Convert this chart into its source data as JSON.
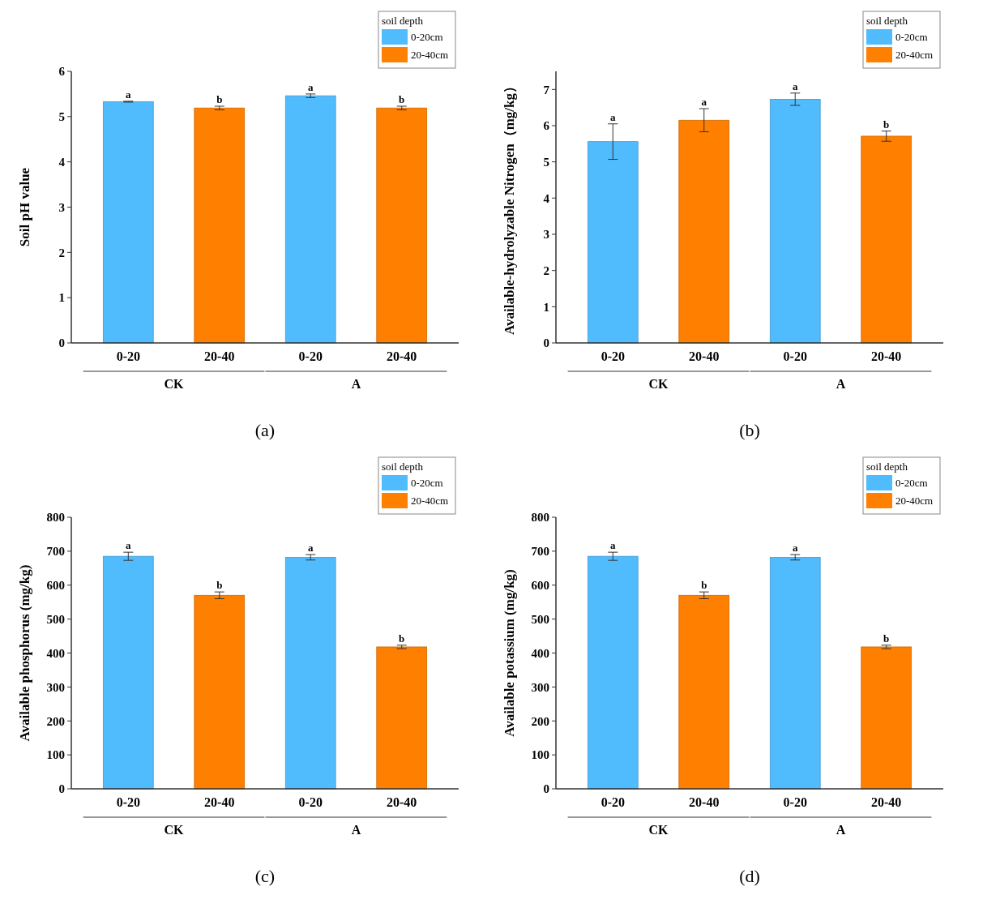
{
  "chart_data": [
    {
      "type": "bar",
      "title": "(a)",
      "ylabel": "Soil pH value",
      "legend_title": "soil depth",
      "legend": "top right",
      "categories": [
        "0-20",
        "20-40",
        "0-20",
        "20-40"
      ],
      "annotations": [
        "CK",
        "A"
      ],
      "ylim": [
        0,
        6
      ],
      "yticks": [
        0,
        1,
        2,
        3,
        4,
        5,
        6
      ],
      "series": [
        {
          "name": "0-20cm",
          "color": "#50bcfd",
          "values": [
            5.33,
            null,
            5.46,
            null
          ],
          "errors": [
            0.01,
            null,
            0.04,
            null
          ],
          "value_labels": [
            "a",
            null,
            "a",
            null
          ]
        },
        {
          "name": "20-40cm",
          "color": "#ff7f00",
          "values": [
            null,
            5.19,
            null,
            5.19
          ],
          "errors": [
            null,
            0.04,
            null,
            0.04
          ],
          "value_labels": [
            null,
            "b",
            null,
            "b"
          ]
        }
      ]
    },
    {
      "type": "bar",
      "title": "(b)",
      "ylabel": "Available-hydrolyzable Nitrogen（mg/kg）",
      "legend_title": "soil depth",
      "legend": "top right",
      "categories": [
        "0-20",
        "20-40",
        "0-20",
        "20-40"
      ],
      "annotations": [
        "CK",
        "A"
      ],
      "ylim": [
        0,
        7.5
      ],
      "yticks": [
        0,
        1,
        2,
        3,
        4,
        5,
        6,
        7
      ],
      "series": [
        {
          "name": "0-20cm",
          "color": "#50bcfd",
          "values": [
            5.56,
            null,
            6.73,
            null
          ],
          "errors": [
            0.49,
            null,
            0.17,
            null
          ],
          "value_labels": [
            "a",
            null,
            "a",
            null
          ]
        },
        {
          "name": "20-40cm",
          "color": "#ff7f00",
          "values": [
            null,
            6.15,
            null,
            5.71
          ],
          "errors": [
            null,
            0.32,
            null,
            0.14
          ],
          "value_labels": [
            null,
            "a",
            null,
            "b"
          ]
        }
      ]
    },
    {
      "type": "bar",
      "title": "(c)",
      "ylabel": "Available phosphorus (mg/kg)",
      "legend_title": "soil depth",
      "legend": "top right",
      "categories": [
        "0-20",
        "20-40",
        "0-20",
        "20-40"
      ],
      "annotations": [
        "CK",
        "A"
      ],
      "ylim": [
        0,
        800
      ],
      "yticks": [
        0,
        100,
        200,
        300,
        400,
        500,
        600,
        700,
        800
      ],
      "series": [
        {
          "name": "0-20cm",
          "color": "#50bcfd",
          "values": [
            685,
            null,
            682,
            null
          ],
          "errors": [
            12,
            null,
            8,
            null
          ],
          "value_labels": [
            "a",
            null,
            "a",
            null
          ]
        },
        {
          "name": "20-40cm",
          "color": "#ff7f00",
          "values": [
            null,
            570,
            null,
            418
          ],
          "errors": [
            null,
            10,
            null,
            5
          ],
          "value_labels": [
            null,
            "b",
            null,
            "b"
          ]
        }
      ]
    },
    {
      "type": "bar",
      "title": "(d)",
      "ylabel": "Available potassium (mg/kg)",
      "legend_title": "soil depth",
      "legend": "top right",
      "categories": [
        "0-20",
        "20-40",
        "0-20",
        "20-40"
      ],
      "annotations": [
        "CK",
        "A"
      ],
      "ylim": [
        0,
        800
      ],
      "yticks": [
        0,
        100,
        200,
        300,
        400,
        500,
        600,
        700,
        800
      ],
      "series": [
        {
          "name": "0-20cm",
          "color": "#50bcfd",
          "values": [
            685,
            null,
            682,
            null
          ],
          "errors": [
            12,
            null,
            8,
            null
          ],
          "value_labels": [
            "a",
            null,
            "a",
            null
          ]
        },
        {
          "name": "20-40cm",
          "color": "#ff7f00",
          "values": [
            null,
            570,
            null,
            418
          ],
          "errors": [
            null,
            10,
            null,
            5
          ],
          "value_labels": [
            null,
            "b",
            null,
            "b"
          ]
        }
      ]
    }
  ]
}
